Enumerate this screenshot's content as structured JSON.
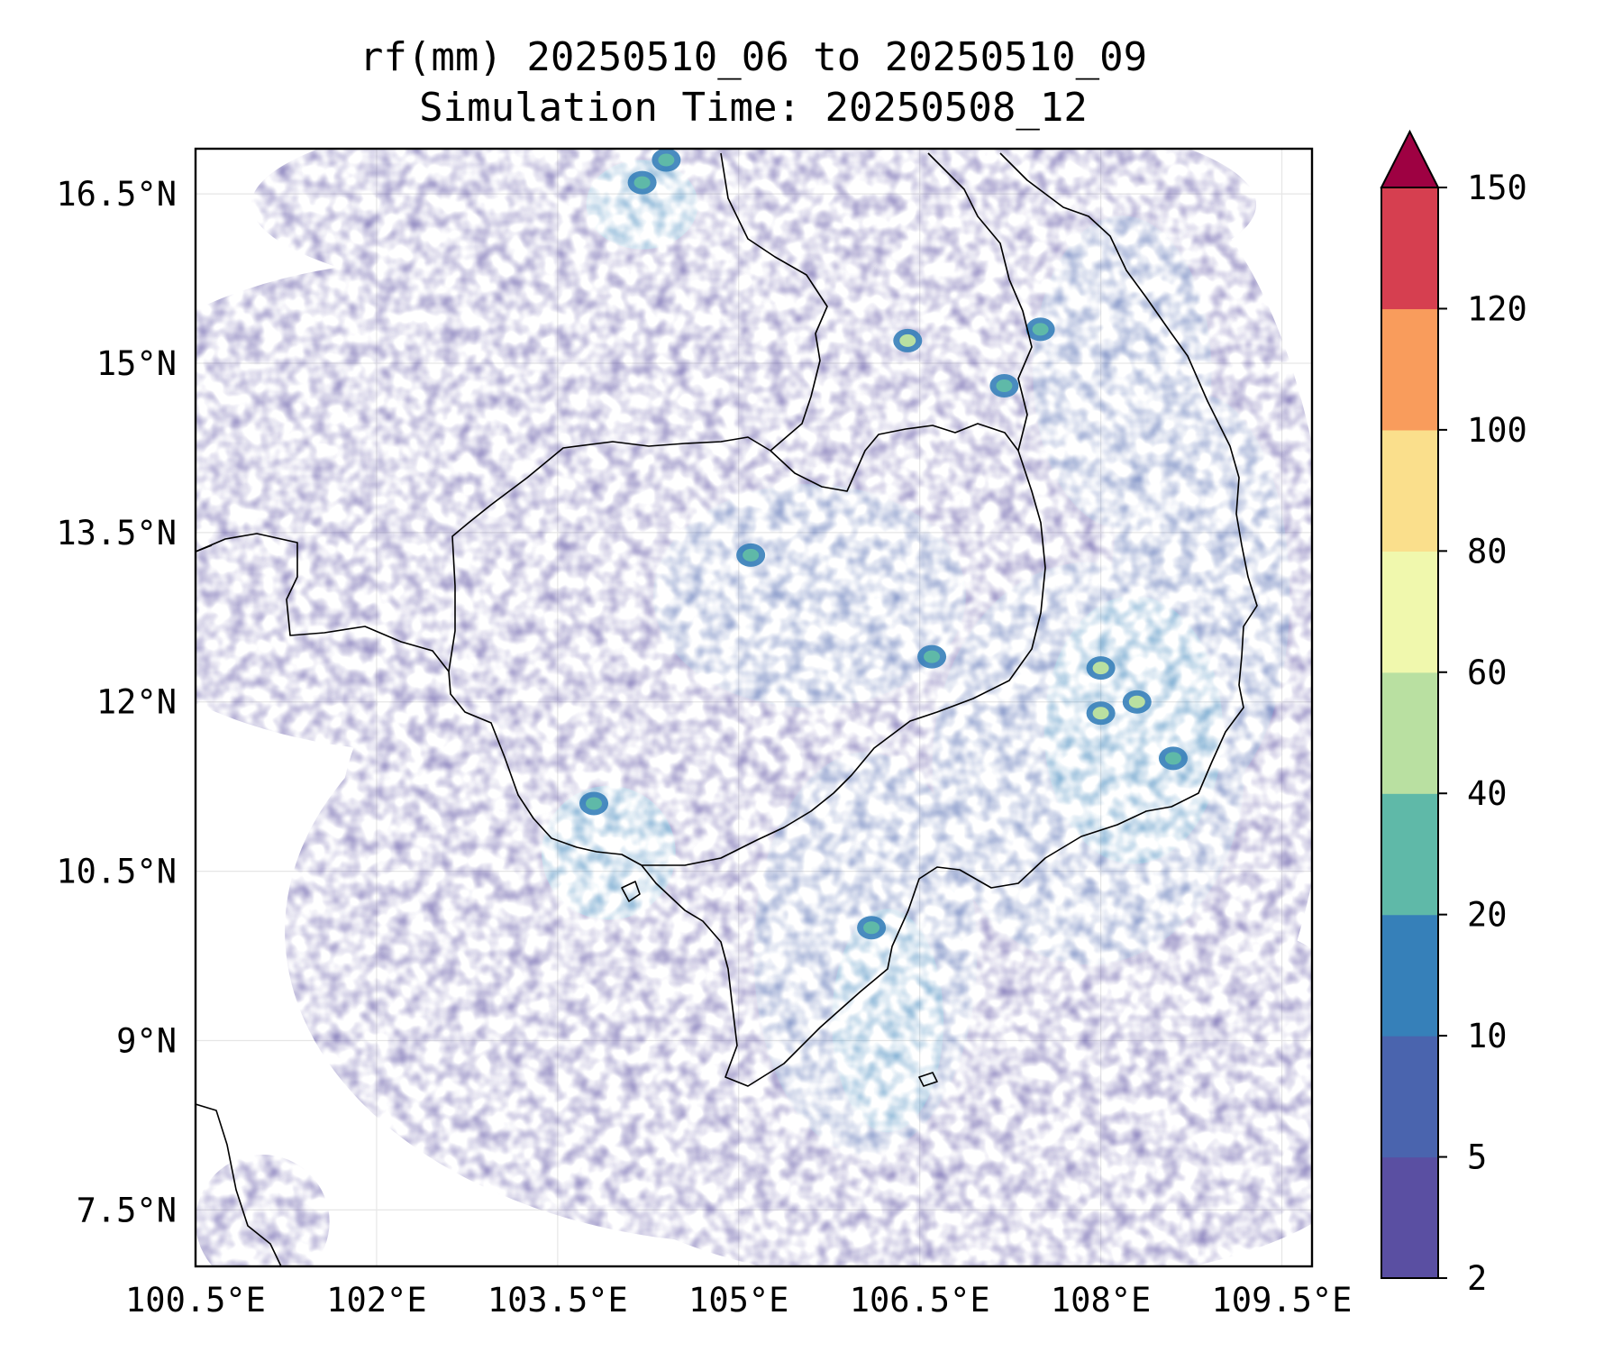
{
  "title_line1": "rf(mm) 20250510_06 to 20250510_09",
  "title_line2": "Simulation Time: 20250508_12",
  "map": {
    "lon_range": [
      100.5,
      109.75
    ],
    "lat_range": [
      7.0,
      16.9
    ],
    "lat_ticks": [
      {
        "value": 16.5,
        "label": "16.5°N"
      },
      {
        "value": 15.0,
        "label": "15°N"
      },
      {
        "value": 13.5,
        "label": "13.5°N"
      },
      {
        "value": 12.0,
        "label": "12°N"
      },
      {
        "value": 10.5,
        "label": "10.5°N"
      },
      {
        "value": 9.0,
        "label": "9°N"
      },
      {
        "value": 7.5,
        "label": "7.5°N"
      }
    ],
    "lon_ticks": [
      {
        "value": 100.5,
        "label": "100.5°E"
      },
      {
        "value": 102.0,
        "label": "102°E"
      },
      {
        "value": 103.5,
        "label": "103.5°E"
      },
      {
        "value": 105.0,
        "label": "105°E"
      },
      {
        "value": 106.5,
        "label": "106.5°E"
      },
      {
        "value": 108.0,
        "label": "108°E"
      },
      {
        "value": 109.5,
        "label": "109.5°E"
      }
    ],
    "gridlines": true
  },
  "colorbar": {
    "levels": [
      "2",
      "5",
      "10",
      "20",
      "40",
      "60",
      "80",
      "100",
      "120",
      "150"
    ],
    "colors": [
      "#5a4fa2",
      "#4a64ae",
      "#3680b9",
      "#5fb9a8",
      "#b9e0a1",
      "#f0f8ad",
      "#fadf8c",
      "#f99c5c",
      "#d63f50"
    ],
    "extend_color": "#9e0142"
  },
  "chart_data": {
    "type": "heatmap",
    "title": "rf(mm) 20250510_06 to 20250510_09\nSimulation Time: 20250508_12",
    "variable": "rf(mm)",
    "xlim": [
      100.5,
      109.75
    ],
    "ylim": [
      7.0,
      16.9
    ],
    "levels": [
      2,
      5,
      10,
      20,
      40,
      60,
      80,
      100,
      120,
      150
    ],
    "extend": "max",
    "maxima": [
      {
        "lon": 104.4,
        "lat": 16.8,
        "value": 30
      },
      {
        "lon": 104.2,
        "lat": 16.6,
        "value": 25
      },
      {
        "lon": 106.4,
        "lat": 15.2,
        "value": 45
      },
      {
        "lon": 107.5,
        "lat": 15.3,
        "value": 25
      },
      {
        "lon": 107.2,
        "lat": 14.8,
        "value": 30
      },
      {
        "lon": 105.1,
        "lat": 13.3,
        "value": 25
      },
      {
        "lon": 108.0,
        "lat": 12.3,
        "value": 55
      },
      {
        "lon": 108.3,
        "lat": 12.0,
        "value": 50
      },
      {
        "lon": 108.0,
        "lat": 11.9,
        "value": 45
      },
      {
        "lon": 106.1,
        "lat": 10.0,
        "value": 30
      },
      {
        "lon": 103.8,
        "lat": 11.1,
        "value": 25
      },
      {
        "lon": 108.6,
        "lat": 11.5,
        "value": 25
      },
      {
        "lon": 106.6,
        "lat": 12.4,
        "value": 25
      }
    ]
  }
}
